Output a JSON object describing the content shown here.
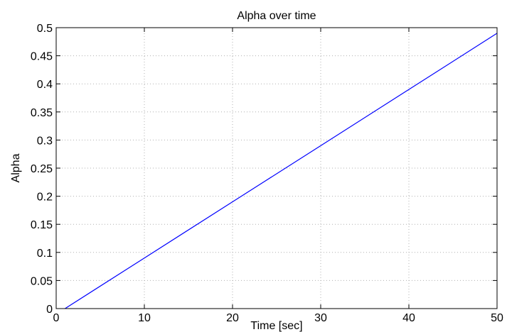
{
  "chart_data": {
    "type": "line",
    "title": "Alpha over time",
    "xlabel": "Time [sec]",
    "ylabel": "Alpha",
    "xlim": [
      0,
      50
    ],
    "ylim": [
      0,
      0.5
    ],
    "x_ticks": [
      0,
      10,
      20,
      30,
      40,
      50
    ],
    "x_tick_labels": [
      "0",
      "10",
      "20",
      "30",
      "40",
      "50"
    ],
    "y_ticks": [
      0,
      0.05,
      0.1,
      0.15,
      0.2,
      0.25,
      0.3,
      0.35,
      0.4,
      0.45,
      0.5
    ],
    "y_tick_labels": [
      "0",
      "0.05",
      "0.1",
      "0.15",
      "0.2",
      "0.25",
      "0.3",
      "0.35",
      "0.4",
      "0.45",
      "0.5"
    ],
    "grid": true,
    "series": [
      {
        "color": "#0000ff",
        "x": [
          1,
          10,
          20,
          30,
          40,
          50
        ],
        "y": [
          0,
          0.09,
          0.19,
          0.29,
          0.39,
          0.49
        ]
      }
    ]
  }
}
